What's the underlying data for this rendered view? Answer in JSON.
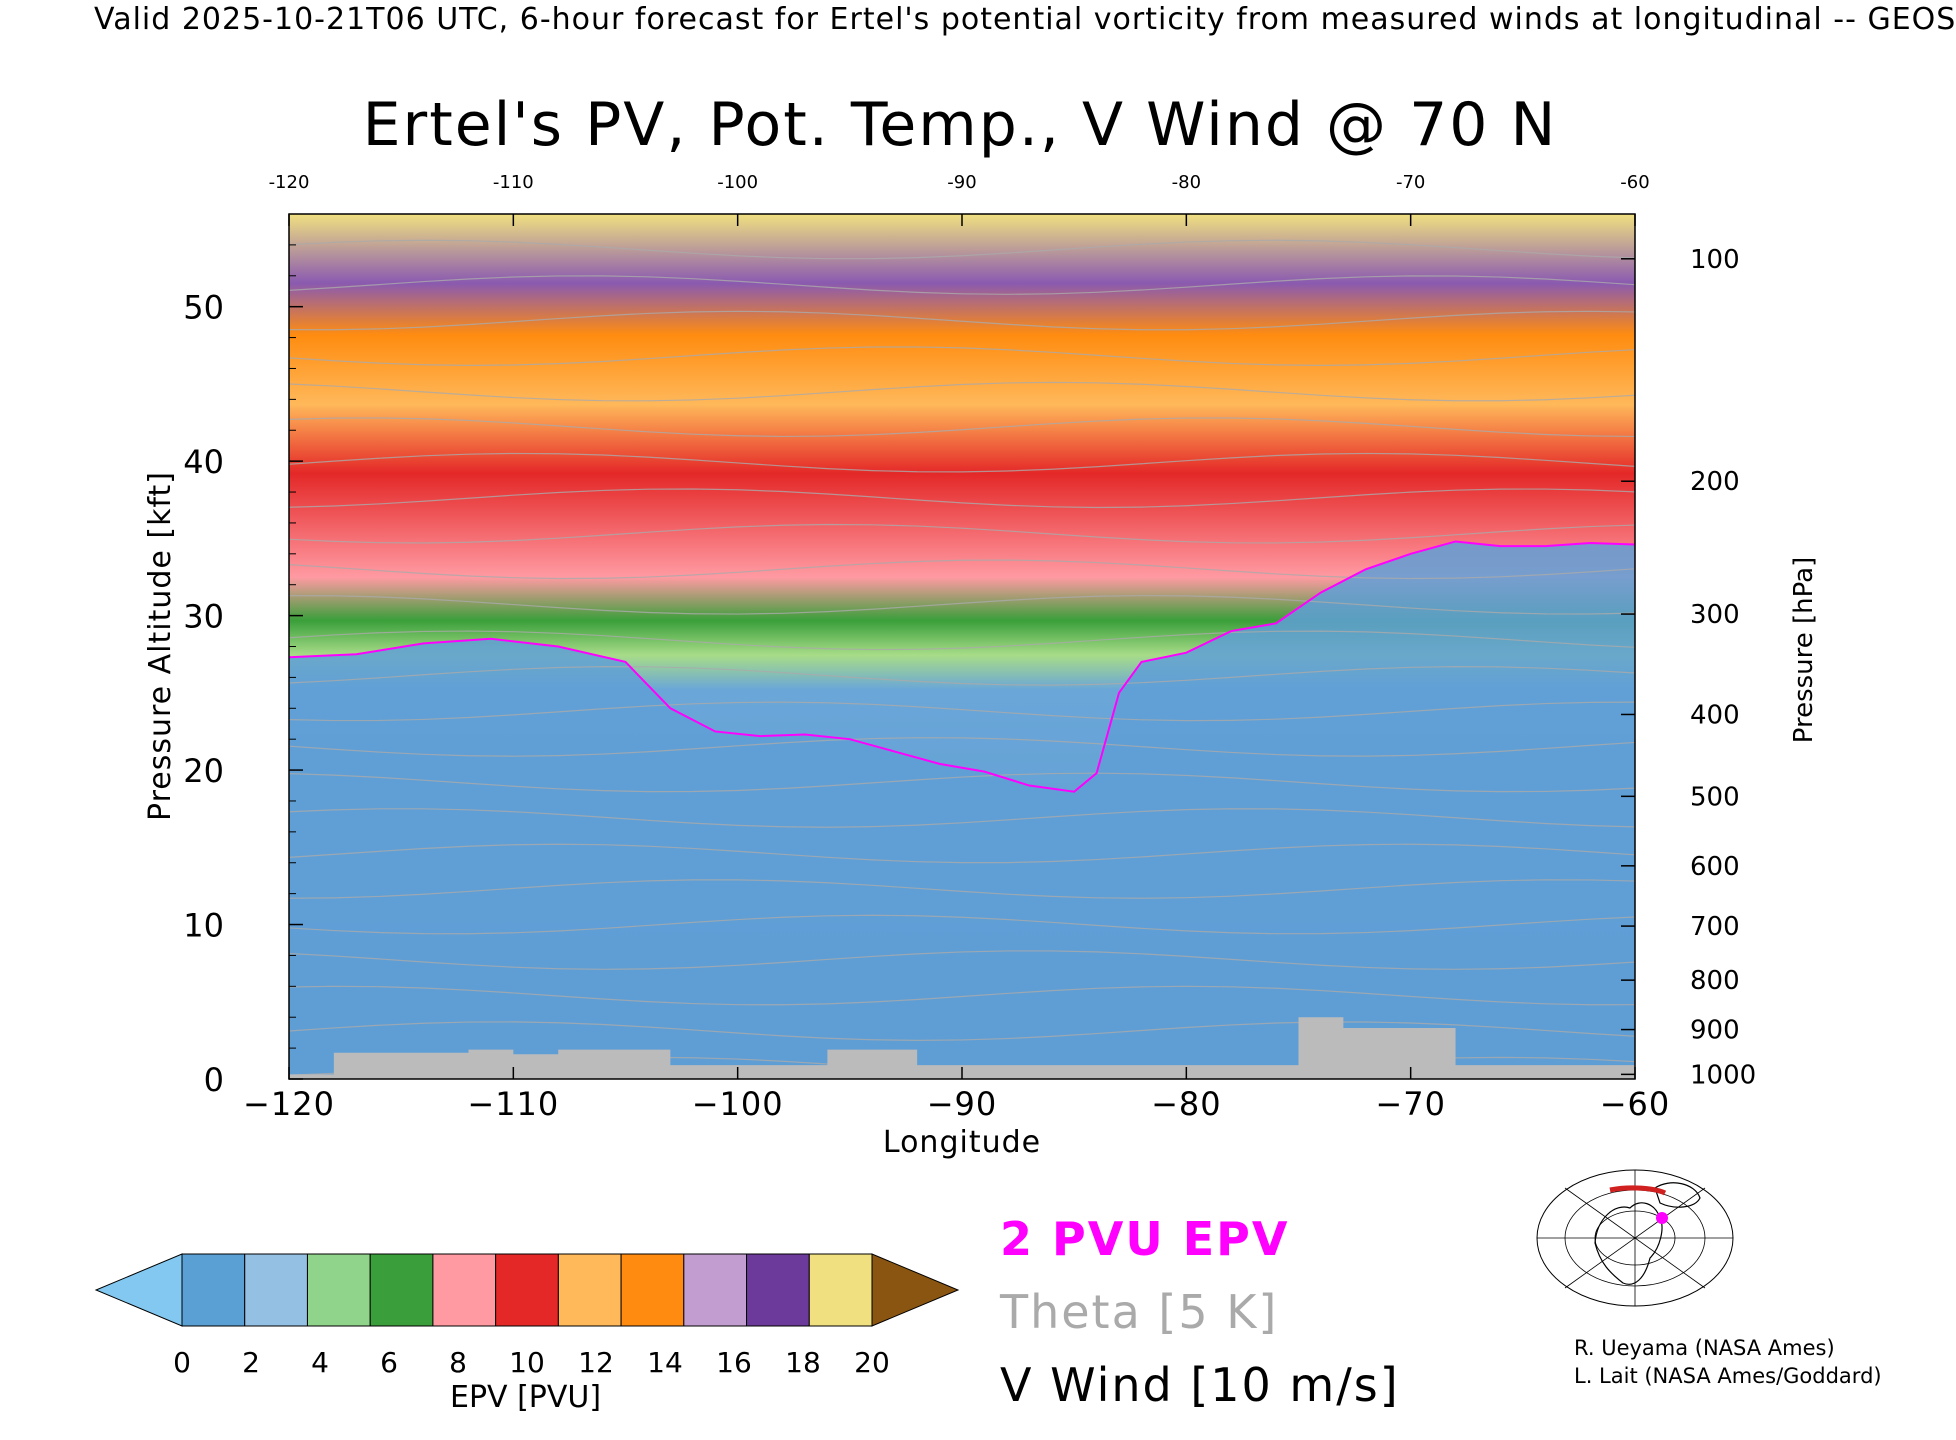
{
  "header": "Valid 2025-10-21T06 UTC, 6-hour forecast for Ertel's potential vorticity from measured winds at longitudinal -- GEOS",
  "colors": {
    "epv_contour": "#ff00ff",
    "theta": "#aaaaaa",
    "vwind": "#000000",
    "ground": "#bbbbbb"
  },
  "chart_data": {
    "type": "heatmap",
    "title": "Ertel's PV, Pot. Temp., V Wind @ 70 N",
    "xlabel": "Longitude",
    "ylabel_left": "Pressure Altitude [kft]",
    "ylabel_right": "Pressure [hPa]",
    "xlim": [
      -120,
      -60
    ],
    "ylim": [
      0,
      56
    ],
    "x_ticks": [
      -120,
      -110,
      -100,
      -90,
      -80,
      -70,
      -60
    ],
    "x_tick_labels": [
      "−120",
      "−110",
      "−100",
      "−90",
      "−80",
      "−70",
      "−60"
    ],
    "top_tick_labels": [
      "-120",
      "-110",
      "-100",
      "-90",
      "-80",
      "-70",
      "-60"
    ],
    "y_ticks": [
      0,
      10,
      20,
      30,
      40,
      50
    ],
    "y_tick_labels": [
      "0",
      "10",
      "20",
      "30",
      "40",
      "50"
    ],
    "pressure_ticks": [
      {
        "hpa": "1000",
        "kft": 0.3
      },
      {
        "hpa": "900",
        "kft": 3.2
      },
      {
        "hpa": "800",
        "kft": 6.4
      },
      {
        "hpa": "700",
        "kft": 9.9
      },
      {
        "hpa": "600",
        "kft": 13.8
      },
      {
        "hpa": "500",
        "kft": 18.3
      },
      {
        "hpa": "400",
        "kft": 23.6
      },
      {
        "hpa": "300",
        "kft": 30.1
      },
      {
        "hpa": "200",
        "kft": 38.7
      },
      {
        "hpa": "100",
        "kft": 53.1
      }
    ],
    "epv_2pvu_tropopause": {
      "x": [
        -120,
        -117,
        -114,
        -111,
        -108,
        -105,
        -103,
        -101,
        -99,
        -97,
        -95,
        -93,
        -91,
        -89,
        -87,
        -85,
        -84,
        -83,
        -82,
        -80,
        -78,
        -76,
        -74,
        -72,
        -70,
        -68,
        -66,
        -64,
        -62,
        -60
      ],
      "y": [
        27.3,
        27.5,
        28.2,
        28.5,
        28.0,
        27.0,
        24.0,
        22.5,
        22.2,
        22.3,
        22.0,
        21.2,
        20.4,
        19.9,
        19.0,
        18.6,
        19.8,
        25.0,
        27.0,
        27.6,
        29.0,
        29.5,
        31.5,
        33.0,
        34.0,
        34.8,
        34.5,
        34.5,
        34.7,
        34.6
      ]
    },
    "colorbar": {
      "label": "EPV [PVU]",
      "ticks": [
        "0",
        "2",
        "4",
        "6",
        "8",
        "10",
        "12",
        "14",
        "16",
        "18",
        "20"
      ],
      "colors": [
        "#5aa0d4",
        "#94c0e4",
        "#8fd48a",
        "#3a9f3a",
        "#ff9aa2",
        "#e42828",
        "#ffb85a",
        "#ff8c10",
        "#c29ed0",
        "#6b3a9a",
        "#f0e080"
      ],
      "under_color": "#82c8f0",
      "over_color": "#8a5510"
    }
  },
  "legend": {
    "epv": "2 PVU EPV",
    "theta": "Theta [5 K]",
    "vwind": "V Wind [10 m/s]"
  },
  "credits": [
    "R. Ueyama (NASA Ames)",
    "L. Lait (NASA Ames/Goddard)"
  ]
}
